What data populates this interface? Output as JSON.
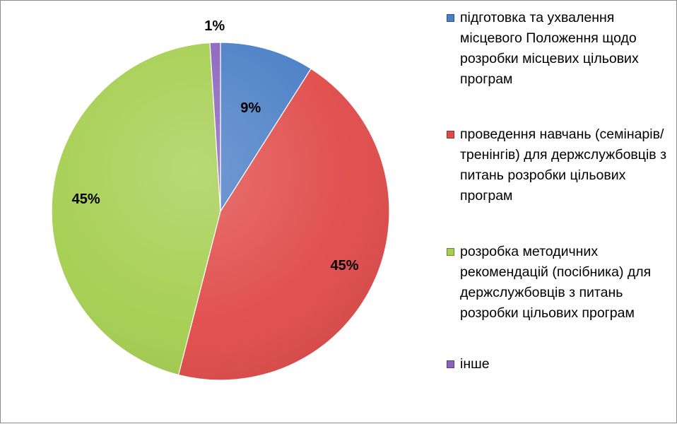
{
  "chart_data": {
    "type": "pie",
    "title": "",
    "series": [
      {
        "categories": [
          "підготовка та ухвалення місцевого Положення щодо розробки місцевих цільових програм",
          "проведення навчань (семінарів/тренінгів) для держслужбовців з питань розробки цільових програм",
          "розробка методичних рекомендацій (посібника) для держслужбовців з питань розробки цільових програм",
          "інше"
        ],
        "values": [
          9,
          45,
          45,
          1
        ],
        "data_labels": [
          "9%",
          "45%",
          "45%",
          "1%"
        ],
        "colors": [
          "#4A7EC6",
          "#E04B4A",
          "#A5CE4F",
          "#8A62BE"
        ]
      }
    ],
    "legend": {
      "position": "right",
      "entries": [
        "підготовка та ухвалення місцевого Положення щодо розробки місцевих цільових програм",
        "проведення навчань (семінарів/тренінгів) для держслужбовців з питань розробки цільових програм",
        "розробка методичних рекомендацій (посібника) для держслужбовців з питань розробки цільових програм",
        "інше"
      ]
    }
  }
}
